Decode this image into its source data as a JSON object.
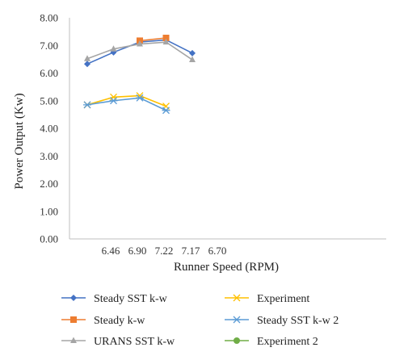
{
  "chart_data": {
    "type": "line",
    "xlabel": "Runner Speed (RPM)",
    "ylabel": "Power Output (Kw)",
    "ylim": [
      0,
      8
    ],
    "ytick_step": 1,
    "ytick_labels": [
      "0.00",
      "1.00",
      "2.00",
      "3.00",
      "4.00",
      "5.00",
      "6.00",
      "7.00",
      "8.00"
    ],
    "x_tick_labels": [
      "6.46",
      "6.90",
      "7.22",
      "7.17",
      "6.70"
    ],
    "grid": false,
    "legend_position": "bottom",
    "series": [
      {
        "name": "Steady SST k-w",
        "color": "#4472C4",
        "marker": "diamond",
        "points": [
          [
            0,
            6.33
          ],
          [
            1,
            6.75
          ],
          [
            2,
            7.12
          ],
          [
            3,
            7.2
          ],
          [
            4,
            6.72
          ]
        ]
      },
      {
        "name": "Steady k-w",
        "color": "#ED7D31",
        "marker": "square",
        "points": [
          [
            2,
            7.17
          ],
          [
            3,
            7.27
          ]
        ]
      },
      {
        "name": "URANS SST k-w",
        "color": "#A5A5A5",
        "marker": "triangle",
        "points": [
          [
            0,
            6.52
          ],
          [
            1,
            6.87
          ],
          [
            2,
            7.05
          ],
          [
            3,
            7.12
          ],
          [
            4,
            6.48
          ]
        ]
      },
      {
        "name": "Experiment",
        "color": "#FFC000",
        "marker": "x",
        "points": [
          [
            0,
            4.85
          ],
          [
            1,
            5.13
          ],
          [
            2,
            5.18
          ],
          [
            3,
            4.8
          ]
        ]
      },
      {
        "name": "Steady SST k-w 2",
        "color": "#5B9BD5",
        "marker": "star",
        "points": [
          [
            0,
            4.85
          ],
          [
            1,
            5.0
          ],
          [
            2,
            5.1
          ],
          [
            3,
            4.65
          ]
        ]
      },
      {
        "name": "Experiment 2",
        "color": "#70AD47",
        "marker": "circle",
        "points": []
      }
    ]
  }
}
